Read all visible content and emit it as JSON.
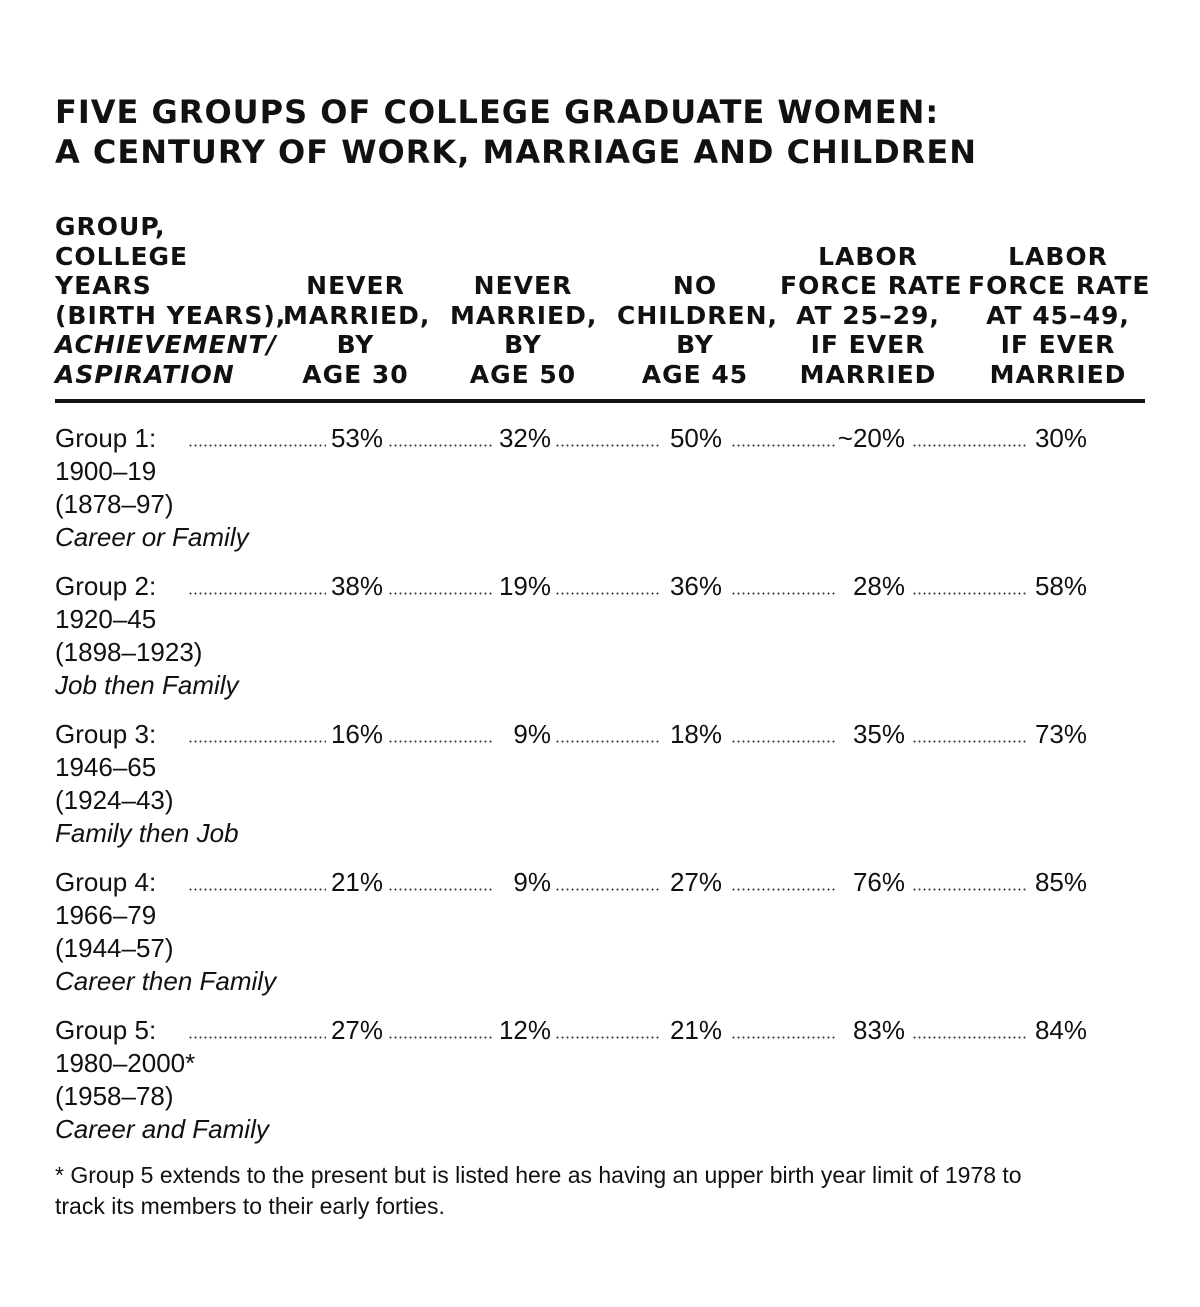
{
  "title": {
    "line1": "FIVE GROUPS OF COLLEGE GRADUATE WOMEN:",
    "line2": "A CENTURY OF WORK, MARRIAGE AND CHILDREN"
  },
  "columns": {
    "group": {
      "lines": [
        "GROUP,",
        "COLLEGE",
        "YEARS",
        "(BIRTH YEARS),"
      ],
      "italic_lines": [
        "ACHIEVEMENT/",
        "ASPIRATION"
      ]
    },
    "never_married_30": [
      "NEVER",
      "MARRIED,",
      "BY",
      "AGE 30"
    ],
    "never_married_50": [
      "NEVER",
      "MARRIED,",
      "BY",
      "AGE 50"
    ],
    "no_children_45": [
      "NO",
      "CHILDREN,",
      "BY",
      "AGE 45"
    ],
    "labor_25_29": [
      "LABOR",
      "FORCE RATE",
      "AT 25–29,",
      "IF EVER",
      "MARRIED"
    ],
    "labor_45_49": [
      "LABOR",
      "FORCE RATE",
      "AT 45–49,",
      "IF EVER",
      "MARRIED"
    ]
  },
  "chart_data": {
    "type": "table",
    "title": "FIVE GROUPS OF COLLEGE GRADUATE WOMEN: A CENTURY OF WORK, MARRIAGE AND CHILDREN",
    "rows": [
      {
        "group": "Group 1:",
        "college_years": "1900–19",
        "birth_years": "(1878–97)",
        "aspiration": "Career or Family",
        "never_married_30": "53%",
        "never_married_50": "32%",
        "no_children_45": "50%",
        "labor_25_29": "~20%",
        "labor_45_49": "30%"
      },
      {
        "group": "Group 2:",
        "college_years": "1920–45",
        "birth_years": "(1898–1923)",
        "aspiration": "Job then Family",
        "never_married_30": "38%",
        "never_married_50": "19%",
        "no_children_45": "36%",
        "labor_25_29": "28%",
        "labor_45_49": "58%"
      },
      {
        "group": "Group 3:",
        "college_years": "1946–65",
        "birth_years": "(1924–43)",
        "aspiration": "Family then Job",
        "never_married_30": "16%",
        "never_married_50": "9%",
        "no_children_45": "18%",
        "labor_25_29": "35%",
        "labor_45_49": "73%"
      },
      {
        "group": "Group 4:",
        "college_years": "1966–79",
        "birth_years": "(1944–57)",
        "aspiration": "Career then Family",
        "never_married_30": "21%",
        "never_married_50": "9%",
        "no_children_45": "27%",
        "labor_25_29": "76%",
        "labor_45_49": "85%"
      },
      {
        "group": "Group 5:",
        "college_years": "1980–2000*",
        "birth_years": "(1958–78)",
        "aspiration": "Career and Family",
        "never_married_30": "27%",
        "never_married_50": "12%",
        "no_children_45": "21%",
        "labor_25_29": "83%",
        "labor_45_49": "84%"
      }
    ]
  },
  "footnote": {
    "line1": "* Group 5 extends to the present but is listed here as having an upper birth year limit of 1978 to",
    "line2": "track its members to their early forties."
  }
}
